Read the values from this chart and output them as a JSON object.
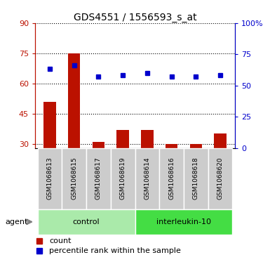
{
  "title": "GDS4551 / 1556593_s_at",
  "samples": [
    "GSM1068613",
    "GSM1068615",
    "GSM1068617",
    "GSM1068619",
    "GSM1068614",
    "GSM1068616",
    "GSM1068618",
    "GSM1068620"
  ],
  "counts": [
    51,
    75,
    31,
    37,
    37,
    30,
    30,
    35
  ],
  "percentiles": [
    63,
    66,
    57,
    58,
    60,
    57,
    57,
    58
  ],
  "groups": [
    {
      "label": "control",
      "start": 0,
      "end": 4,
      "color": "#aaeaaa"
    },
    {
      "label": "interleukin-10",
      "start": 4,
      "end": 8,
      "color": "#44dd44"
    }
  ],
  "ylim_left": [
    28,
    90
  ],
  "ylim_right": [
    0,
    100
  ],
  "yticks_left": [
    30,
    45,
    60,
    75,
    90
  ],
  "yticks_right": [
    0,
    25,
    50,
    75,
    100
  ],
  "ytick_labels_left": [
    "30",
    "45",
    "60",
    "75",
    "90"
  ],
  "ytick_labels_right": [
    "0",
    "25",
    "50",
    "75",
    "100%"
  ],
  "bar_color": "#bb1100",
  "scatter_color": "#0000cc",
  "bar_width": 0.5,
  "background_color": "#ffffff",
  "label_bg_color": "#cccccc",
  "agent_label": "agent",
  "legend_count": "count",
  "legend_percentile": "percentile rank within the sample"
}
